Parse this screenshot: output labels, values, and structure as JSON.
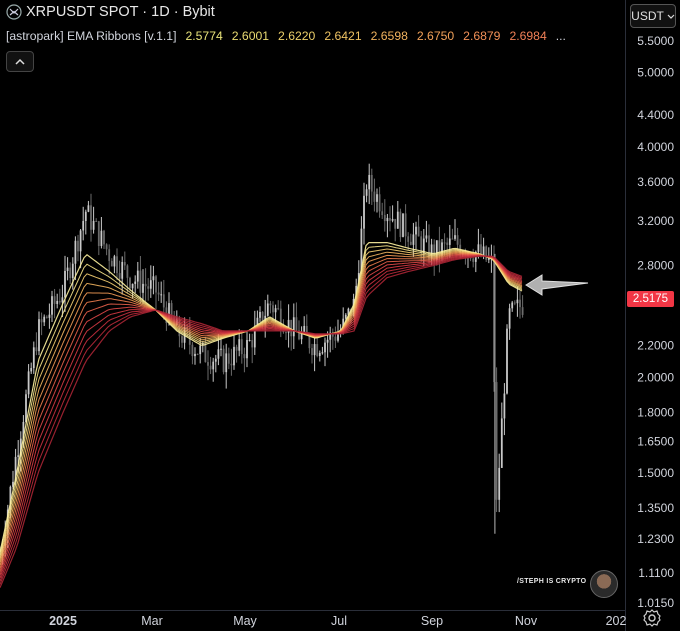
{
  "header": {
    "symbol_title": "XRPUSDT SPOT · 1D · Bybit"
  },
  "indicator": {
    "name": "[astropark] EMA Ribbons [v.1.1]",
    "values": [
      "2.5774",
      "2.6001",
      "2.6220",
      "2.6421",
      "2.6598",
      "2.6750",
      "2.6879",
      "2.6984"
    ],
    "value_colors": [
      "#e8e37a",
      "#eadb72",
      "#edd06a",
      "#efc363",
      "#f1b35e",
      "#f2a25a",
      "#f29158",
      "#f18057"
    ],
    "more": "..."
  },
  "toolbar": {
    "currency_label": "USDT",
    "currency_icon": "chevron-down-icon",
    "collapse_icon": "chevron-up-icon",
    "settings_icon": "gear-icon"
  },
  "last_price": {
    "label": "2.5175",
    "color": "#f23645"
  },
  "watermark": "/STEPH IS CRYPTO",
  "chart_data": {
    "type": "line",
    "title": "XRPUSDT SPOT · 1D · Bybit",
    "y_scale": "log",
    "y_ticks": [
      "5.5000",
      "5.0000",
      "4.4000",
      "4.0000",
      "3.6000",
      "3.2000",
      "2.8000",
      "2.2000",
      "2.0000",
      "1.8000",
      "1.6500",
      "1.5000",
      "1.3500",
      "1.2300",
      "1.1100",
      "1.0150"
    ],
    "x_ticks": [
      "2025",
      "Mar",
      "May",
      "Jul",
      "Sep",
      "Nov",
      "202"
    ],
    "ylim": [
      1.0,
      5.8
    ],
    "series": [
      {
        "x": [
          "Nov 15",
          "Dec 1",
          "Dec 15",
          "Jan 1",
          "Jan 16",
          "Feb 1",
          "Feb 15",
          "Mar 1",
          "Mar 15",
          "Apr 1",
          "Apr 15",
          "May 1",
          "May 15",
          "Jun 1",
          "Jun 15",
          "Jul 1",
          "Jul 10",
          "Jul 18",
          "Aug 1",
          "Aug 15",
          "Sep 1",
          "Sep 15",
          "Oct 1",
          "Oct 10",
          "Oct 11",
          "Oct 20",
          "Nov 1"
        ],
        "values": [
          1.0,
          1.6,
          2.3,
          2.6,
          3.3,
          2.9,
          2.7,
          2.6,
          2.3,
          2.15,
          2.1,
          2.2,
          2.5,
          2.3,
          2.2,
          2.3,
          2.5,
          3.6,
          3.3,
          3.1,
          2.9,
          3.0,
          2.9,
          2.8,
          1.25,
          2.4,
          2.5175
        ]
      }
    ],
    "ribbon": {
      "count": 8,
      "x": [
        "Nov 15",
        "Dec 1",
        "Dec 15",
        "Jan 1",
        "Jan 16",
        "Feb 1",
        "Feb 15",
        "Mar 1",
        "Mar 15",
        "Apr 1",
        "Apr 15",
        "May 1",
        "May 15",
        "Jun 1",
        "Jun 15",
        "Jul 1",
        "Jul 10",
        "Jul 18",
        "Aug 1",
        "Aug 15",
        "Sep 1",
        "Sep 15",
        "Oct 1",
        "Oct 10",
        "Oct 20",
        "Nov 1"
      ],
      "fastest": [
        1.05,
        1.5,
        2.1,
        2.5,
        2.9,
        2.75,
        2.6,
        2.45,
        2.3,
        2.2,
        2.25,
        2.3,
        2.4,
        2.3,
        2.25,
        2.3,
        2.5,
        3.0,
        3.0,
        2.95,
        2.9,
        2.95,
        2.9,
        2.85,
        2.65,
        2.5774
      ],
      "slowest": [
        1.0,
        1.2,
        1.5,
        1.8,
        2.1,
        2.3,
        2.4,
        2.45,
        2.4,
        2.35,
        2.3,
        2.3,
        2.3,
        2.3,
        2.28,
        2.28,
        2.3,
        2.55,
        2.7,
        2.75,
        2.8,
        2.85,
        2.88,
        2.88,
        2.75,
        2.6984
      ]
    },
    "annotations": [
      "arrow pointing at ribbon near last price"
    ]
  }
}
